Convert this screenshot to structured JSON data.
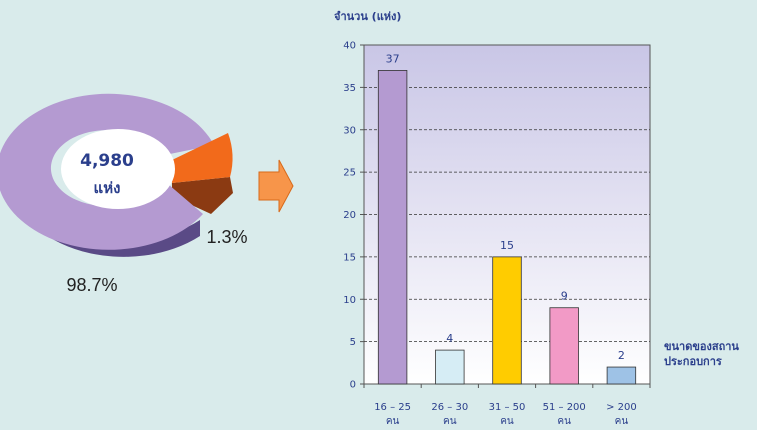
{
  "donut": {
    "center_value": "4,980",
    "center_unit": "แห่ง",
    "big_share_label": "98.7%",
    "small_share_label": "1.3%",
    "big_share": 98.7,
    "small_share": 1.3,
    "colors": {
      "big": "#b49ad1",
      "big_dark": "#5a4a86",
      "small": "#f26a1b",
      "small_dark": "#8b3a12",
      "center": "#ffffff"
    }
  },
  "arrow": {
    "color": "#f7954a"
  },
  "chart_data": {
    "type": "bar",
    "ylabel": "จำนวน (แห่ง)",
    "xlabel": "ขนาดของสถาน ประกอบการ",
    "xlabel_lines": [
      "ขนาดของสถาน",
      "ประกอบการ"
    ],
    "ylim": [
      0,
      40
    ],
    "yticks": [
      0,
      5,
      10,
      15,
      20,
      25,
      30,
      35,
      40
    ],
    "grid": true,
    "categories": [
      {
        "line1": "16 – 25",
        "line2": "คน"
      },
      {
        "line1": "26 – 30",
        "line2": "คน"
      },
      {
        "line1": "31 – 50",
        "line2": "คน"
      },
      {
        "line1": "51 – 200",
        "line2": "คน"
      },
      {
        "line1": "> 200",
        "line2": "คน"
      }
    ],
    "values": [
      37,
      4,
      15,
      9,
      2
    ],
    "colors": [
      "#b49ad1",
      "#d6edf5",
      "#ffcc00",
      "#f29ac6",
      "#9ec2e6"
    ]
  }
}
